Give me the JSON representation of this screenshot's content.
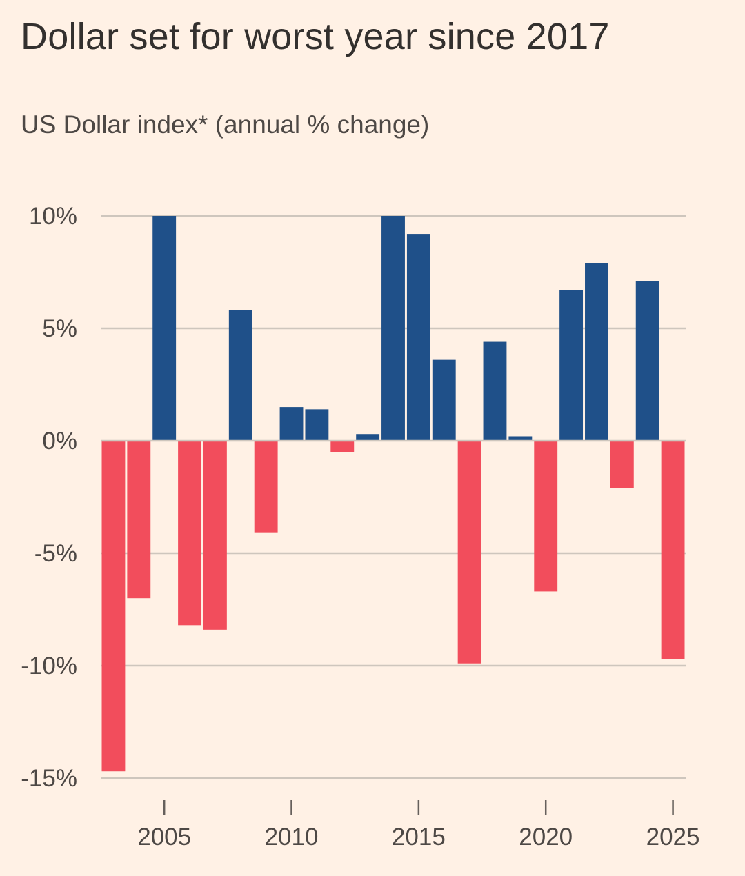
{
  "chart_data": {
    "type": "bar",
    "title": "Dollar set for worst year since 2017",
    "subtitle": "US Dollar index* (annual % change)",
    "xlabel": "",
    "ylabel": "",
    "ylim": [
      -15,
      10
    ],
    "yticks": [
      10,
      5,
      0,
      -5,
      -10,
      -15
    ],
    "ytick_labels": [
      "10%",
      "5%",
      "0%",
      "-5%",
      "-10%",
      "-15%"
    ],
    "xticks": [
      2005,
      2010,
      2015,
      2020,
      2025
    ],
    "xtick_labels": [
      "2005",
      "2010",
      "2015",
      "2020",
      "2025"
    ],
    "grid": true,
    "positive_color": "#1f5089",
    "negative_color": "#f24d5c",
    "categories": [
      "2003",
      "2004",
      "2005",
      "2006",
      "2007",
      "2008",
      "2009",
      "2010",
      "2011",
      "2012",
      "2013",
      "2014",
      "2015",
      "2016",
      "2017",
      "2018",
      "2019",
      "2020",
      "2021",
      "2022",
      "2023",
      "2024",
      "2025"
    ],
    "values": [
      -14.7,
      -7.0,
      10.0,
      -8.2,
      -8.4,
      5.8,
      -4.1,
      1.5,
      1.4,
      -0.5,
      0.3,
      10.0,
      9.2,
      3.6,
      -9.9,
      4.4,
      0.2,
      -6.7,
      6.7,
      7.9,
      -2.1,
      7.1,
      -9.7
    ]
  }
}
